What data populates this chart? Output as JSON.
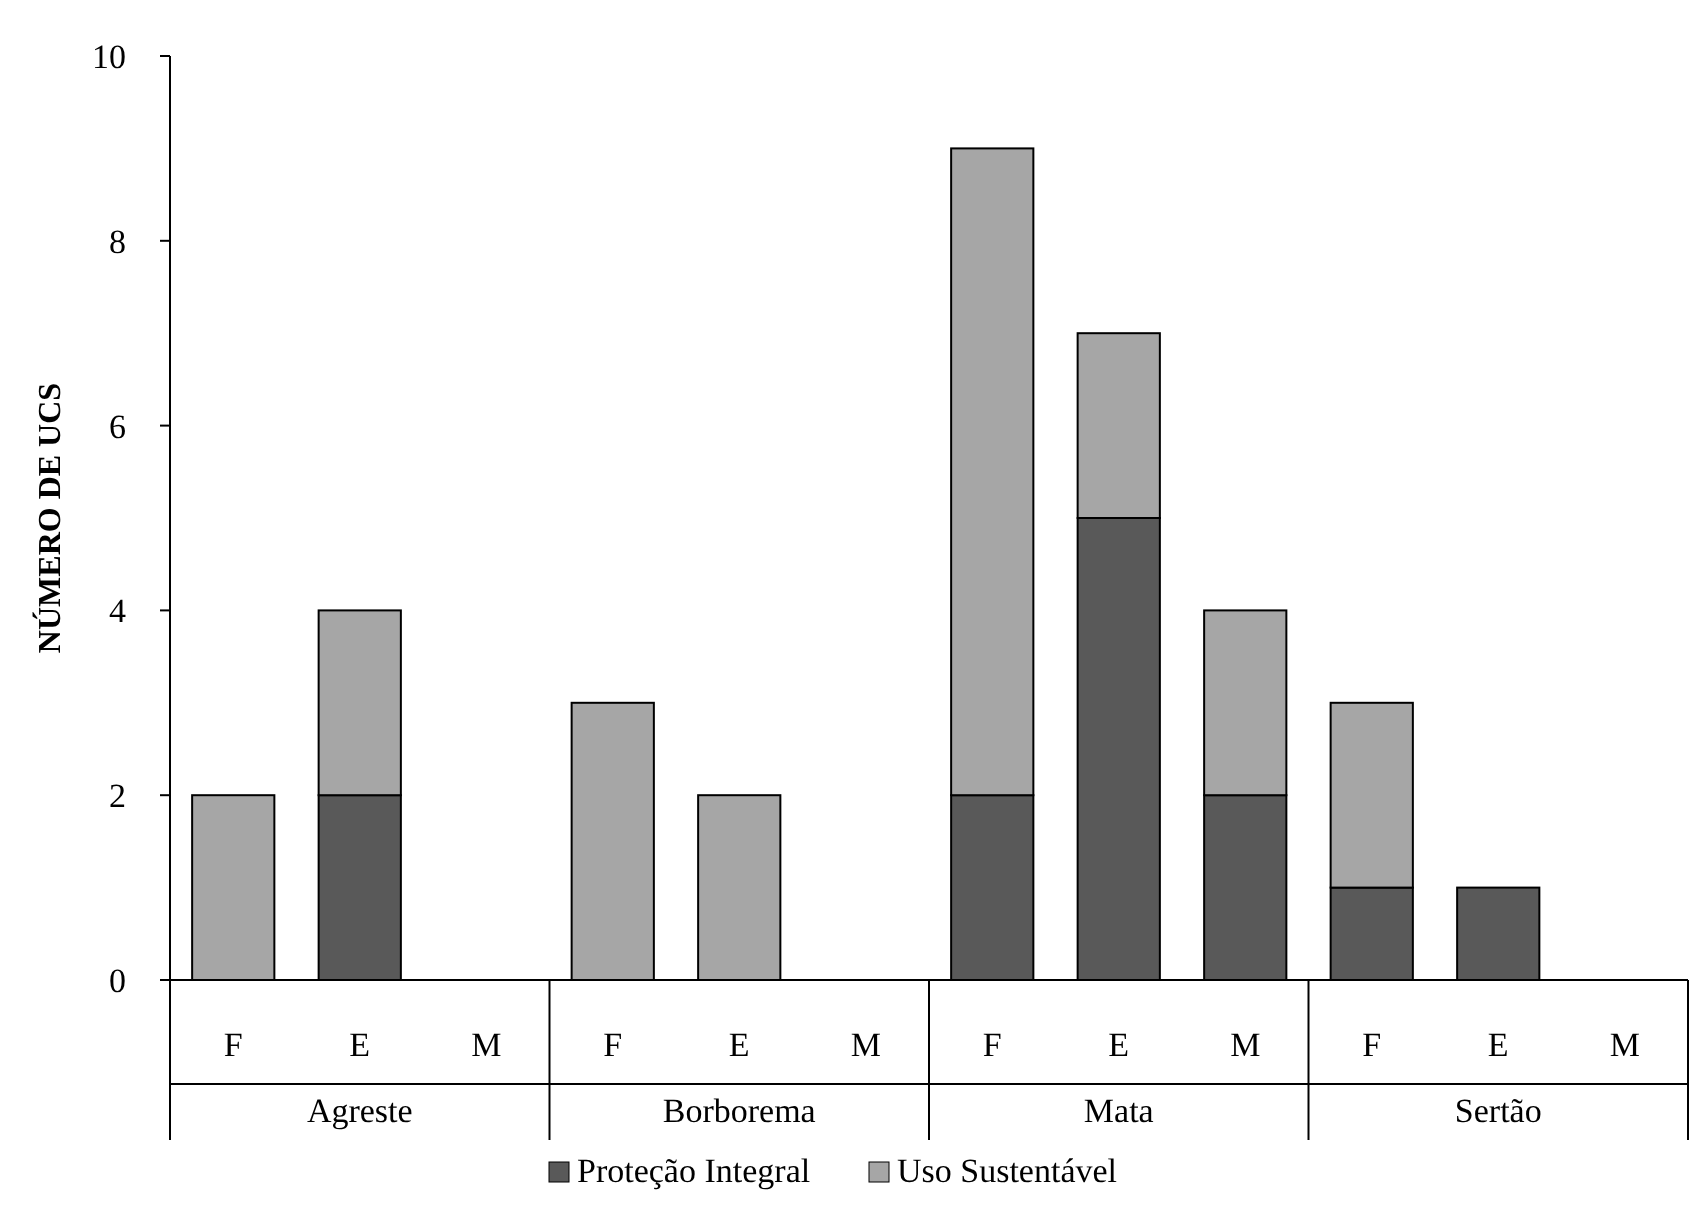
{
  "chart_data": {
    "type": "bar",
    "stacked": true,
    "ylabel": "NÚMERO DE UCS",
    "categories": [
      "F",
      "E",
      "M",
      "F",
      "E",
      "M",
      "F",
      "E",
      "M",
      "F",
      "E",
      "M"
    ],
    "annotations": [
      "Agreste",
      "Borborema",
      "Mata",
      "Sertão"
    ],
    "series": [
      {
        "name": "Proteção Integral",
        "color": "#595959",
        "values": [
          0,
          2,
          0,
          0,
          0,
          0,
          2,
          5,
          2,
          1,
          1,
          0
        ]
      },
      {
        "name": "Uso Sustentável",
        "color": "#a6a6a6",
        "values": [
          2,
          2,
          0,
          3,
          2,
          0,
          7,
          2,
          2,
          2,
          0,
          0
        ]
      }
    ],
    "ylim": [
      0,
      10
    ],
    "yticks": [
      0,
      2,
      4,
      6,
      8,
      10
    ],
    "grid": false,
    "legend": "bottom"
  }
}
